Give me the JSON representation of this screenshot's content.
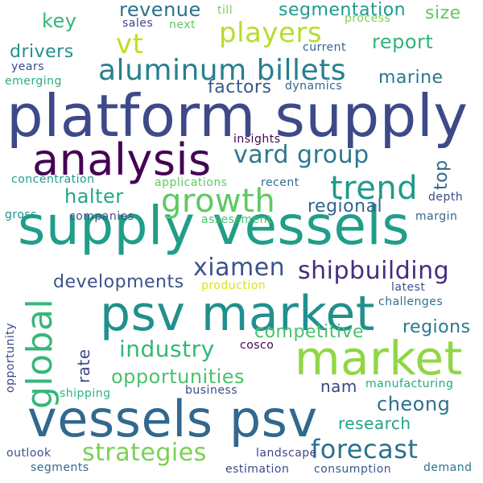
{
  "words": [
    {
      "text": "platform supply",
      "color": "#3e4989"
    },
    {
      "text": "supply vessels",
      "color": "#1f9e89"
    },
    {
      "text": "vessels psv",
      "color": "#31688e"
    },
    {
      "text": "psv market",
      "color": "#21908d"
    },
    {
      "text": "market",
      "color": "#8fd744"
    },
    {
      "text": "analysis",
      "color": "#440154"
    },
    {
      "text": "aluminum billets",
      "color": "#277f8e"
    },
    {
      "text": "global",
      "color": "#35b779"
    },
    {
      "text": "trend",
      "color": "#1e9b8a"
    },
    {
      "text": "growth",
      "color": "#5ec962"
    },
    {
      "text": "players",
      "color": "#b5de2b"
    },
    {
      "text": "vt",
      "color": "#bddf26"
    },
    {
      "text": "vard group",
      "color": "#2a788e"
    },
    {
      "text": "xiamen",
      "color": "#3b528b"
    },
    {
      "text": "shipbuilding",
      "color": "#472d7b"
    },
    {
      "text": "forecast",
      "color": "#2c728e"
    },
    {
      "text": "strategies",
      "color": "#7ad151"
    },
    {
      "text": "industry",
      "color": "#35b779"
    },
    {
      "text": "opportunities",
      "color": "#4ac16d"
    },
    {
      "text": "cheong",
      "color": "#2c718e"
    },
    {
      "text": "competitive",
      "color": "#4ac16d"
    },
    {
      "text": "regions",
      "color": "#2a788e"
    },
    {
      "text": "developments",
      "color": "#3b528b"
    },
    {
      "text": "regional",
      "color": "#33638d"
    },
    {
      "text": "halter",
      "color": "#22a884"
    },
    {
      "text": "revenue",
      "color": "#2d708e"
    },
    {
      "text": "segmentation",
      "color": "#1f9a8a"
    },
    {
      "text": "size",
      "color": "#5ec962"
    },
    {
      "text": "report",
      "color": "#2fb47c"
    },
    {
      "text": "marine",
      "color": "#2a788e"
    },
    {
      "text": "key",
      "color": "#35b779"
    },
    {
      "text": "drivers",
      "color": "#21908d"
    },
    {
      "text": "factors",
      "color": "#38598c"
    },
    {
      "text": "top",
      "color": "#31688e"
    },
    {
      "text": "nam",
      "color": "#414487"
    },
    {
      "text": "research",
      "color": "#20a386"
    },
    {
      "text": "rate",
      "color": "#3f4788"
    },
    {
      "text": "sales",
      "color": "#414487"
    },
    {
      "text": "next",
      "color": "#5ec962"
    },
    {
      "text": "till",
      "color": "#7ad151"
    },
    {
      "text": "process",
      "color": "#7ad151"
    },
    {
      "text": "current",
      "color": "#33638d"
    },
    {
      "text": "years",
      "color": "#3e4989"
    },
    {
      "text": "emerging",
      "color": "#28ae80"
    },
    {
      "text": "dynamics",
      "color": "#32648e"
    },
    {
      "text": "insights",
      "color": "#440154"
    },
    {
      "text": "concentration",
      "color": "#1f9e89"
    },
    {
      "text": "applications",
      "color": "#5ec962"
    },
    {
      "text": "recent",
      "color": "#2d708e"
    },
    {
      "text": "depth",
      "color": "#3e4989"
    },
    {
      "text": "gross",
      "color": "#21908d"
    },
    {
      "text": "companies",
      "color": "#3b528b"
    },
    {
      "text": "assessment",
      "color": "#4ac16d"
    },
    {
      "text": "margin",
      "color": "#31688e"
    },
    {
      "text": "production",
      "color": "#d8e219"
    },
    {
      "text": "latest",
      "color": "#3b528b"
    },
    {
      "text": "challenges",
      "color": "#2c728e"
    },
    {
      "text": "opportunity",
      "color": "#3e4989"
    },
    {
      "text": "cosco",
      "color": "#440154"
    },
    {
      "text": "shipping",
      "color": "#2fb47c"
    },
    {
      "text": "business",
      "color": "#3e4989"
    },
    {
      "text": "manufacturing",
      "color": "#22a884"
    },
    {
      "text": "outlook",
      "color": "#3b528b"
    },
    {
      "text": "landscape",
      "color": "#414487"
    },
    {
      "text": "segments",
      "color": "#31688e"
    },
    {
      "text": "estimation",
      "color": "#3e4989"
    },
    {
      "text": "consumption",
      "color": "#38598c"
    },
    {
      "text": "demand",
      "color": "#2a788e"
    }
  ]
}
